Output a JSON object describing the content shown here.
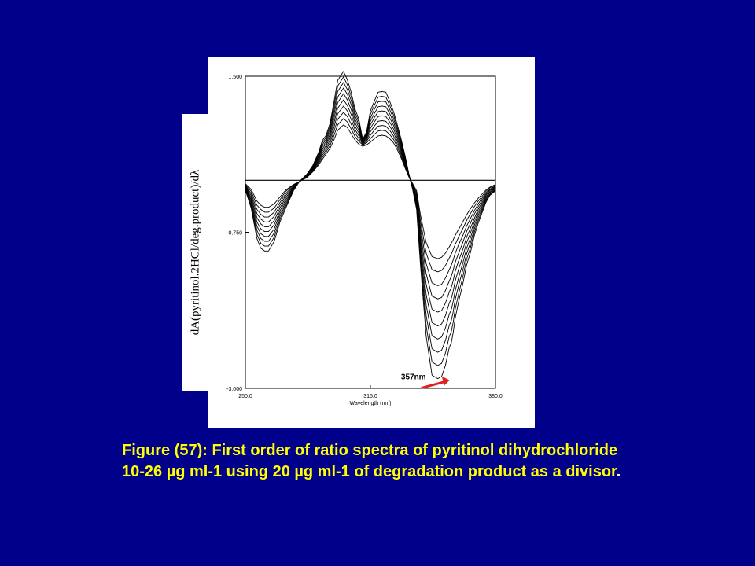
{
  "chart_data": {
    "type": "line",
    "title": "",
    "xlabel": "Wavelength (nm)",
    "ylabel": "dA(pyritinol.2HCl/deg.product)/dλ",
    "xlim": [
      250.0,
      380.0
    ],
    "ylim": [
      -3.0,
      1.5
    ],
    "xticks": [
      "250.0",
      "315.0",
      "380.0"
    ],
    "yticks": [
      "1.500",
      "-0.750",
      "-3.000"
    ],
    "baseline_y": 0,
    "annotation": {
      "text": "357nm",
      "x": 357,
      "y": -2.95,
      "arrow_color": "#e02020"
    },
    "x": [
      250,
      253,
      256,
      258,
      260,
      262,
      265,
      268,
      271,
      275,
      278,
      282,
      285,
      288,
      290,
      292,
      294,
      296,
      298,
      301,
      303,
      305,
      307,
      309,
      311,
      313,
      315,
      317,
      319,
      321,
      323,
      325,
      327,
      329,
      331,
      333,
      335,
      337,
      339,
      341,
      344,
      347,
      350,
      352,
      354,
      356,
      357,
      358,
      359,
      361,
      363,
      365,
      367,
      369,
      371,
      373,
      375,
      377,
      380
    ],
    "series": [
      {
        "values": [
          -0.05,
          -0.13,
          -0.3,
          -0.36,
          -0.39,
          -0.39,
          -0.34,
          -0.24,
          -0.14,
          -0.06,
          -0.02,
          0.04,
          0.12,
          0.22,
          0.3,
          0.38,
          0.46,
          0.58,
          0.72,
          0.8,
          0.76,
          0.67,
          0.58,
          0.52,
          0.49,
          0.51,
          0.55,
          0.6,
          0.64,
          0.65,
          0.64,
          0.6,
          0.54,
          0.44,
          0.32,
          0.18,
          0.05,
          -0.05,
          -0.15,
          -0.5,
          -0.9,
          -1.1,
          -1.13,
          -1.11,
          -1.05,
          -0.96,
          -0.91,
          -0.86,
          -0.8,
          -0.7,
          -0.6,
          -0.5,
          -0.41,
          -0.33,
          -0.26,
          -0.2,
          -0.14,
          -0.1,
          -0.06
        ]
      },
      {
        "values": [
          -0.06,
          -0.16,
          -0.36,
          -0.42,
          -0.46,
          -0.46,
          -0.4,
          -0.28,
          -0.16,
          -0.07,
          -0.02,
          0.05,
          0.13,
          0.24,
          0.33,
          0.41,
          0.5,
          0.64,
          0.8,
          0.89,
          0.84,
          0.74,
          0.63,
          0.56,
          0.51,
          0.54,
          0.6,
          0.66,
          0.71,
          0.72,
          0.71,
          0.66,
          0.59,
          0.48,
          0.35,
          0.2,
          0.05,
          -0.06,
          -0.18,
          -0.58,
          -1.05,
          -1.29,
          -1.32,
          -1.3,
          -1.23,
          -1.12,
          -1.07,
          -1.0,
          -0.93,
          -0.81,
          -0.7,
          -0.58,
          -0.48,
          -0.38,
          -0.3,
          -0.23,
          -0.16,
          -0.11,
          -0.07
        ]
      },
      {
        "values": [
          -0.07,
          -0.19,
          -0.42,
          -0.49,
          -0.53,
          -0.53,
          -0.46,
          -0.32,
          -0.19,
          -0.08,
          -0.02,
          0.05,
          0.14,
          0.26,
          0.36,
          0.44,
          0.54,
          0.7,
          0.88,
          0.98,
          0.92,
          0.81,
          0.68,
          0.6,
          0.52,
          0.56,
          0.65,
          0.72,
          0.78,
          0.79,
          0.78,
          0.72,
          0.64,
          0.52,
          0.38,
          0.22,
          0.06,
          -0.07,
          -0.21,
          -0.66,
          -1.2,
          -1.48,
          -1.52,
          -1.5,
          -1.41,
          -1.29,
          -1.23,
          -1.15,
          -1.06,
          -0.92,
          -0.8,
          -0.66,
          -0.55,
          -0.44,
          -0.34,
          -0.26,
          -0.18,
          -0.13,
          -0.08
        ]
      },
      {
        "values": [
          -0.08,
          -0.22,
          -0.48,
          -0.56,
          -0.6,
          -0.6,
          -0.52,
          -0.36,
          -0.22,
          -0.09,
          -0.02,
          0.06,
          0.15,
          0.28,
          0.39,
          0.47,
          0.58,
          0.76,
          0.96,
          1.07,
          1.0,
          0.88,
          0.73,
          0.64,
          0.53,
          0.58,
          0.7,
          0.78,
          0.85,
          0.86,
          0.85,
          0.78,
          0.69,
          0.56,
          0.41,
          0.24,
          0.06,
          -0.08,
          -0.24,
          -0.74,
          -1.35,
          -1.67,
          -1.71,
          -1.69,
          -1.59,
          -1.45,
          -1.39,
          -1.3,
          -1.19,
          -1.04,
          -0.9,
          -0.74,
          -0.62,
          -0.49,
          -0.38,
          -0.29,
          -0.2,
          -0.14,
          -0.09
        ]
      },
      {
        "values": [
          -0.09,
          -0.25,
          -0.54,
          -0.63,
          -0.67,
          -0.67,
          -0.58,
          -0.4,
          -0.25,
          -0.1,
          -0.02,
          0.07,
          0.16,
          0.3,
          0.42,
          0.5,
          0.62,
          0.82,
          1.04,
          1.16,
          1.08,
          0.95,
          0.78,
          0.68,
          0.54,
          0.6,
          0.75,
          0.84,
          0.92,
          0.93,
          0.92,
          0.84,
          0.74,
          0.6,
          0.44,
          0.26,
          0.07,
          -0.09,
          -0.27,
          -0.82,
          -1.5,
          -1.86,
          -1.9,
          -1.88,
          -1.77,
          -1.61,
          -1.55,
          -1.45,
          -1.32,
          -1.15,
          -1.0,
          -0.82,
          -0.69,
          -0.55,
          -0.42,
          -0.32,
          -0.22,
          -0.15,
          -0.1
        ]
      },
      {
        "values": [
          -0.1,
          -0.28,
          -0.6,
          -0.7,
          -0.74,
          -0.74,
          -0.64,
          -0.44,
          -0.28,
          -0.11,
          -0.02,
          0.07,
          0.17,
          0.32,
          0.45,
          0.53,
          0.66,
          0.88,
          1.12,
          1.25,
          1.16,
          1.02,
          0.83,
          0.72,
          0.55,
          0.62,
          0.8,
          0.9,
          0.99,
          1.0,
          0.99,
          0.9,
          0.79,
          0.64,
          0.47,
          0.28,
          0.07,
          -0.1,
          -0.3,
          -0.9,
          -1.65,
          -2.05,
          -2.1,
          -2.07,
          -1.95,
          -1.77,
          -1.71,
          -1.6,
          -1.46,
          -1.27,
          -1.1,
          -0.9,
          -0.76,
          -0.6,
          -0.46,
          -0.35,
          -0.24,
          -0.17,
          -0.11
        ]
      },
      {
        "values": [
          -0.11,
          -0.31,
          -0.66,
          -0.77,
          -0.81,
          -0.81,
          -0.7,
          -0.48,
          -0.31,
          -0.12,
          -0.02,
          0.08,
          0.18,
          0.34,
          0.48,
          0.56,
          0.7,
          0.94,
          1.2,
          1.33,
          1.24,
          1.09,
          0.88,
          0.76,
          0.56,
          0.64,
          0.85,
          0.96,
          1.06,
          1.07,
          1.06,
          0.96,
          0.84,
          0.68,
          0.5,
          0.3,
          0.08,
          -0.11,
          -0.33,
          -0.98,
          -1.8,
          -2.24,
          -2.29,
          -2.26,
          -2.13,
          -1.93,
          -1.87,
          -1.75,
          -1.6,
          -1.39,
          -1.2,
          -0.98,
          -0.83,
          -0.65,
          -0.5,
          -0.38,
          -0.26,
          -0.18,
          -0.12
        ]
      },
      {
        "values": [
          -0.12,
          -0.34,
          -0.72,
          -0.84,
          -0.88,
          -0.88,
          -0.76,
          -0.52,
          -0.34,
          -0.13,
          -0.02,
          0.08,
          0.19,
          0.36,
          0.51,
          0.59,
          0.74,
          1.0,
          1.28,
          1.41,
          1.31,
          1.15,
          0.93,
          0.8,
          0.57,
          0.66,
          0.9,
          1.02,
          1.13,
          1.14,
          1.13,
          1.02,
          0.89,
          0.72,
          0.53,
          0.32,
          0.08,
          -0.12,
          -0.36,
          -1.06,
          -1.95,
          -2.43,
          -2.48,
          -2.45,
          -2.31,
          -2.09,
          -2.03,
          -1.9,
          -1.73,
          -1.5,
          -1.3,
          -1.06,
          -0.9,
          -0.7,
          -0.54,
          -0.41,
          -0.28,
          -0.2,
          -0.13
        ]
      },
      {
        "values": [
          -0.13,
          -0.37,
          -0.78,
          -0.91,
          -0.95,
          -0.95,
          -0.82,
          -0.56,
          -0.37,
          -0.14,
          -0.02,
          0.09,
          0.2,
          0.38,
          0.54,
          0.62,
          0.78,
          1.06,
          1.36,
          1.49,
          1.38,
          1.21,
          0.98,
          0.84,
          0.58,
          0.68,
          0.95,
          1.08,
          1.2,
          1.21,
          1.2,
          1.08,
          0.94,
          0.76,
          0.56,
          0.34,
          0.09,
          -0.13,
          -0.39,
          -1.14,
          -2.1,
          -2.62,
          -2.67,
          -2.64,
          -2.49,
          -2.25,
          -2.19,
          -2.05,
          -1.87,
          -1.62,
          -1.4,
          -1.14,
          -0.97,
          -0.75,
          -0.58,
          -0.44,
          -0.3,
          -0.21,
          -0.14
        ]
      },
      {
        "values": [
          -0.14,
          -0.4,
          -0.84,
          -0.98,
          -1.02,
          -1.02,
          -0.88,
          -0.6,
          -0.4,
          -0.15,
          -0.02,
          0.09,
          0.21,
          0.4,
          0.57,
          0.65,
          0.82,
          1.12,
          1.44,
          1.57,
          1.45,
          1.27,
          1.03,
          0.88,
          0.59,
          0.7,
          1.0,
          1.14,
          1.27,
          1.28,
          1.27,
          1.14,
          0.99,
          0.8,
          0.59,
          0.36,
          0.09,
          -0.14,
          -0.42,
          -1.22,
          -2.25,
          -2.81,
          -2.86,
          -2.83,
          -2.67,
          -2.41,
          -2.35,
          -2.2,
          -2.0,
          -1.73,
          -1.5,
          -1.22,
          -1.04,
          -0.8,
          -0.62,
          -0.47,
          -0.32,
          -0.22,
          -0.15
        ]
      }
    ]
  },
  "caption": {
    "text": "Figure (57): First order of ratio spectra of pyritinol dihydrochloride 10-26 µg ml-1  using 20 µg ml-1 of degradation product as a divisor",
    "tail": "."
  }
}
